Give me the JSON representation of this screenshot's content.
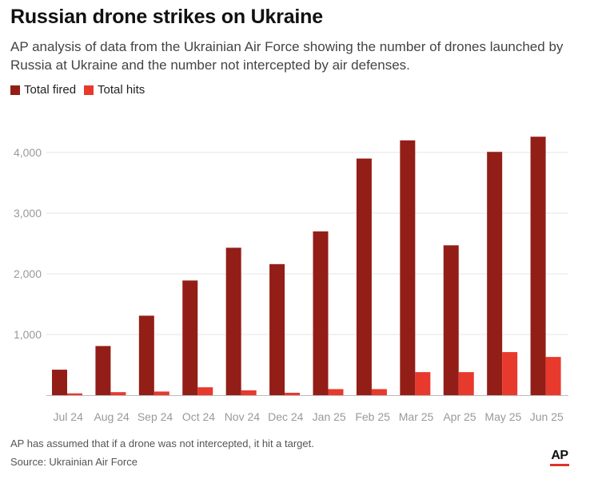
{
  "title": "Russian drone strikes on Ukraine",
  "subtitle": "AP analysis of data from the Ukrainian Air Force showing the number of drones launched by Russia at Ukraine and the number not intercepted by air defenses.",
  "note": "AP has assumed that if a drone was not intercepted, it hit a target.",
  "source": "Source: Ukrainian Air Force",
  "logo": {
    "text": "AP"
  },
  "colors": {
    "fired": "#931e17",
    "hits": "#e8392d",
    "grid": "#e6e6e6",
    "tick_text": "#999999",
    "axis": "#bbbbbb"
  },
  "chart_data": {
    "type": "bar",
    "categories": [
      "Jul 24",
      "Aug 24",
      "Sep 24",
      "Oct 24",
      "Nov 24",
      "Dec 24",
      "Jan 25",
      "Feb 25",
      "Mar 25",
      "Apr 25",
      "May 25",
      "Jun 25"
    ],
    "series": [
      {
        "name": "Total fired",
        "values": [
          420,
          810,
          1310,
          1890,
          2430,
          2160,
          2700,
          3900,
          4200,
          2470,
          4010,
          4260
        ]
      },
      {
        "name": "Total hits",
        "values": [
          30,
          50,
          60,
          130,
          80,
          40,
          100,
          100,
          380,
          380,
          710,
          630
        ]
      }
    ],
    "ylim": [
      0,
      4500
    ],
    "yticks": [
      1000,
      2000,
      3000,
      4000
    ],
    "ytick_labels": [
      "1,000",
      "2,000",
      "3,000",
      "4,000"
    ],
    "grid": true,
    "legend_position": "top-left"
  }
}
